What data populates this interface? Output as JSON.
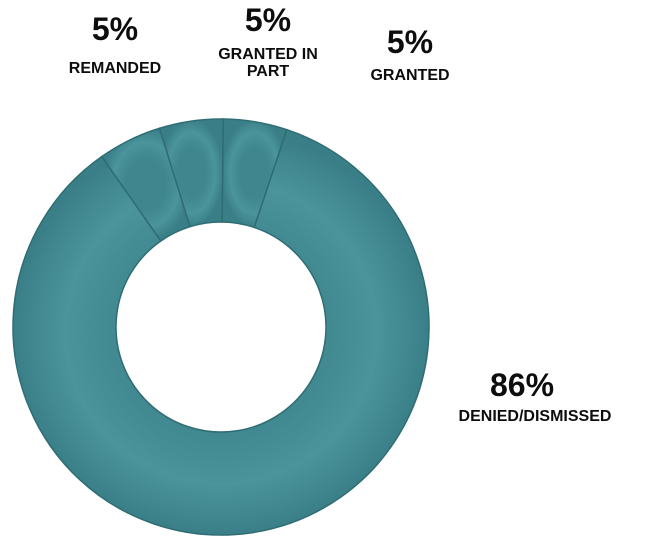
{
  "chart_data": {
    "type": "pie",
    "variant": "donut",
    "color": "#4a939b",
    "edge_color": "#2f6d74",
    "slices": [
      {
        "label": "REMANDED",
        "value_label": "5%",
        "value": 5
      },
      {
        "label": "GRANTED IN PART",
        "value_label": "5%",
        "value": 5
      },
      {
        "label": "GRANTED",
        "value_label": "5%",
        "value": 5
      },
      {
        "label": "DENIED/DISMISSED",
        "value_label": "86%",
        "value": 86
      }
    ]
  }
}
